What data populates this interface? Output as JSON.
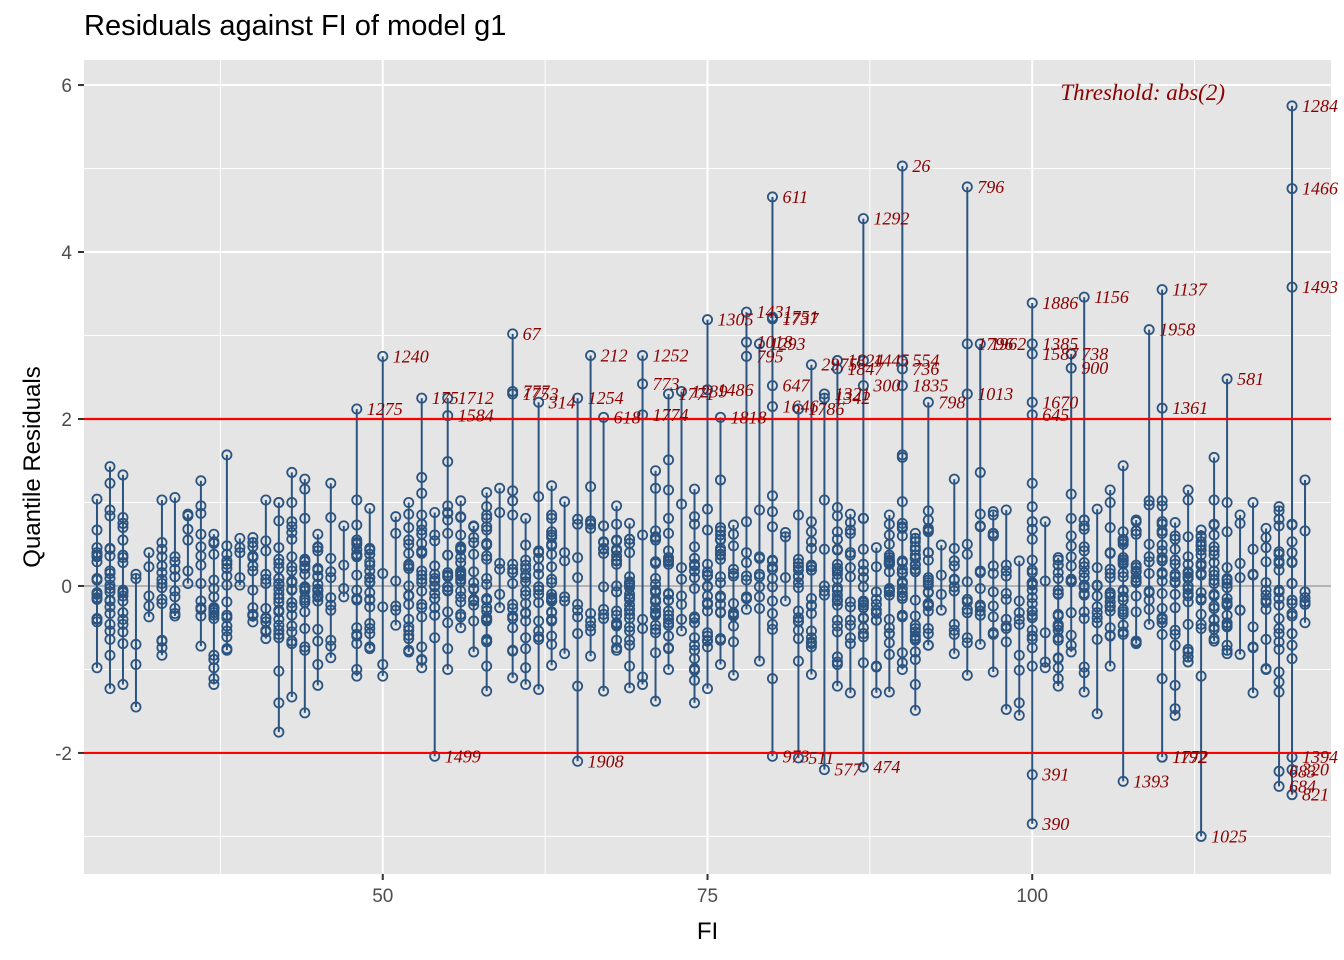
{
  "chart_data": {
    "type": "scatter",
    "title": "Residuals against FI of model g1",
    "xlabel": "FI",
    "ylabel": "Quantile Residuals",
    "xlim": [
      27,
      123
    ],
    "ylim": [
      -3.45,
      6.3
    ],
    "x_ticks": [
      50,
      75,
      100
    ],
    "x_tick_labels": [
      "50",
      "75",
      "100"
    ],
    "y_ticks": [
      -2,
      0,
      2,
      4,
      6
    ],
    "y_tick_labels": [
      "-2",
      "0",
      "2",
      "4",
      "6"
    ],
    "reference_line": 0,
    "threshold": 2,
    "threshold_note": "Threshold: abs(2)",
    "grid": true,
    "colors": {
      "points": "#2b5481",
      "threshold": "#ff0000",
      "zero_line": "#b3b3b3",
      "labels": "#8b0000",
      "panel": "#e5e5e5",
      "grid": "#ffffff"
    },
    "x_levels": [
      28,
      29,
      30,
      31,
      32,
      33,
      34,
      35,
      36,
      37,
      38,
      39,
      40,
      41,
      42,
      43,
      44,
      45,
      46,
      47,
      48,
      49,
      50,
      51,
      52,
      53,
      54,
      55,
      56,
      57,
      58,
      59,
      60,
      61,
      62,
      63,
      64,
      65,
      66,
      67,
      68,
      69,
      70,
      71,
      72,
      73,
      74,
      75,
      76,
      77,
      78,
      79,
      80,
      81,
      82,
      83,
      84,
      85,
      86,
      87,
      88,
      89,
      90,
      91,
      92,
      93,
      94,
      95,
      96,
      97,
      98,
      99,
      100,
      101,
      102,
      103,
      104,
      105,
      106,
      107,
      108,
      109,
      110,
      111,
      112,
      113,
      114,
      115,
      116,
      117,
      118,
      119,
      120,
      121
    ],
    "outliers": [
      {
        "id": "1284",
        "x": 120,
        "y": 5.75
      },
      {
        "id": "1466",
        "x": 120,
        "y": 4.76
      },
      {
        "id": "1493",
        "x": 120,
        "y": 3.58
      },
      {
        "id": "26",
        "x": 90,
        "y": 5.03
      },
      {
        "id": "796",
        "x": 95,
        "y": 4.78
      },
      {
        "id": "611",
        "x": 80,
        "y": 4.66
      },
      {
        "id": "1292",
        "x": 87,
        "y": 4.4
      },
      {
        "id": "1156",
        "x": 104,
        "y": 3.46
      },
      {
        "id": "1137",
        "x": 110,
        "y": 3.55
      },
      {
        "id": "1886",
        "x": 100,
        "y": 3.39
      },
      {
        "id": "1958",
        "x": 109,
        "y": 3.07
      },
      {
        "id": "1431",
        "x": 78,
        "y": 3.28
      },
      {
        "id": "1305",
        "x": 75,
        "y": 3.19
      },
      {
        "id": "1751",
        "x": 80,
        "y": 3.22
      },
      {
        "id": "1737",
        "x": 80,
        "y": 3.2
      },
      {
        "id": "67",
        "x": 60,
        "y": 3.02
      },
      {
        "id": "1240",
        "x": 50,
        "y": 2.75
      },
      {
        "id": "1796",
        "x": 95,
        "y": 2.9
      },
      {
        "id": "1962",
        "x": 96,
        "y": 2.9
      },
      {
        "id": "1385",
        "x": 100,
        "y": 2.9
      },
      {
        "id": "1587",
        "x": 100,
        "y": 2.78
      },
      {
        "id": "738",
        "x": 103,
        "y": 2.78
      },
      {
        "id": "900",
        "x": 103,
        "y": 2.61
      },
      {
        "id": "1018",
        "x": 78,
        "y": 2.92
      },
      {
        "id": "1293",
        "x": 79,
        "y": 2.9
      },
      {
        "id": "795",
        "x": 78,
        "y": 2.75
      },
      {
        "id": "212",
        "x": 66,
        "y": 2.76
      },
      {
        "id": "1252",
        "x": 70,
        "y": 2.76
      },
      {
        "id": "581",
        "x": 115,
        "y": 2.48
      },
      {
        "id": "2975",
        "x": 83,
        "y": 2.65
      },
      {
        "id": "1824",
        "x": 85,
        "y": 2.7
      },
      {
        "id": "1445",
        "x": 87,
        "y": 2.7
      },
      {
        "id": "554",
        "x": 90,
        "y": 2.7
      },
      {
        "id": "1847",
        "x": 85,
        "y": 2.6
      },
      {
        "id": "736",
        "x": 90,
        "y": 2.6
      },
      {
        "id": "647",
        "x": 80,
        "y": 2.4
      },
      {
        "id": "300",
        "x": 87,
        "y": 2.4
      },
      {
        "id": "1835",
        "x": 90,
        "y": 2.4
      },
      {
        "id": "773",
        "x": 70,
        "y": 2.42
      },
      {
        "id": "777",
        "x": 60,
        "y": 2.33
      },
      {
        "id": "1753",
        "x": 60,
        "y": 2.3
      },
      {
        "id": "1254",
        "x": 65,
        "y": 2.25
      },
      {
        "id": "314",
        "x": 62,
        "y": 2.2
      },
      {
        "id": "1486",
        "x": 75,
        "y": 2.35
      },
      {
        "id": "1239",
        "x": 73,
        "y": 2.33
      },
      {
        "id": "1771",
        "x": 72,
        "y": 2.3
      },
      {
        "id": "1321",
        "x": 84,
        "y": 2.3
      },
      {
        "id": "1013",
        "x": 95,
        "y": 2.3
      },
      {
        "id": "1342",
        "x": 84,
        "y": 2.25
      },
      {
        "id": "798",
        "x": 92,
        "y": 2.2
      },
      {
        "id": "1670",
        "x": 100,
        "y": 2.2
      },
      {
        "id": "1361",
        "x": 110,
        "y": 2.13
      },
      {
        "id": "1275",
        "x": 48,
        "y": 2.12
      },
      {
        "id": "175",
        "x": 53,
        "y": 2.25
      },
      {
        "id": "1712",
        "x": 55,
        "y": 2.25
      },
      {
        "id": "1584",
        "x": 55,
        "y": 2.04
      },
      {
        "id": "1646",
        "x": 80,
        "y": 2.15
      },
      {
        "id": "1786",
        "x": 82,
        "y": 2.12
      },
      {
        "id": "618",
        "x": 67,
        "y": 2.02
      },
      {
        "id": "1774",
        "x": 70,
        "y": 2.05
      },
      {
        "id": "1818",
        "x": 76,
        "y": 2.02
      },
      {
        "id": "645",
        "x": 100,
        "y": 2.05
      },
      {
        "id": "1499",
        "x": 54,
        "y": -2.04
      },
      {
        "id": "1908",
        "x": 65,
        "y": -2.1
      },
      {
        "id": "973",
        "x": 80,
        "y": -2.04
      },
      {
        "id": "511",
        "x": 82,
        "y": -2.06
      },
      {
        "id": "577",
        "x": 84,
        "y": -2.2
      },
      {
        "id": "474",
        "x": 87,
        "y": -2.17
      },
      {
        "id": "391",
        "x": 100,
        "y": -2.26
      },
      {
        "id": "390",
        "x": 100,
        "y": -2.85
      },
      {
        "id": "1393",
        "x": 107,
        "y": -2.34
      },
      {
        "id": "1192",
        "x": 110,
        "y": -2.05
      },
      {
        "id": "1772",
        "x": 110,
        "y": -2.05
      },
      {
        "id": "1025",
        "x": 113,
        "y": -3.0
      },
      {
        "id": "1394",
        "x": 120,
        "y": -2.05
      },
      {
        "id": "683",
        "x": 119,
        "y": -2.22
      },
      {
        "id": "320",
        "x": 120,
        "y": -2.2
      },
      {
        "id": "684",
        "x": 119,
        "y": -2.4
      },
      {
        "id": "821",
        "x": 120,
        "y": -2.5
      }
    ]
  }
}
